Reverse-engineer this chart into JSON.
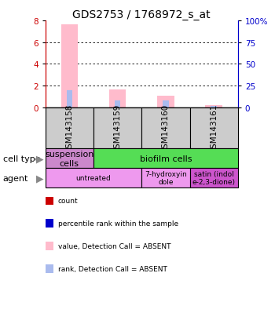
{
  "title": "GDS2753 / 1768972_s_at",
  "samples": [
    "GSM143158",
    "GSM143159",
    "GSM143160",
    "GSM143161"
  ],
  "pink_values": [
    7.6,
    1.65,
    1.05,
    0.18
  ],
  "blue_values": [
    20.0,
    8.0,
    8.0,
    2.0
  ],
  "pink_color": "#ffbbcc",
  "blue_color": "#aabbee",
  "ylim_left": [
    0,
    8
  ],
  "ylim_right": [
    0,
    100
  ],
  "yticks_left": [
    0,
    2,
    4,
    6,
    8
  ],
  "yticks_right": [
    0,
    25,
    50,
    75,
    100
  ],
  "cell_spans": [
    {
      "start": 0,
      "end": 1,
      "label": "suspension\ncells",
      "color": "#cc88cc"
    },
    {
      "start": 1,
      "end": 4,
      "label": "biofilm cells",
      "color": "#55dd55"
    }
  ],
  "agent_spans": [
    {
      "start": 0,
      "end": 2,
      "label": "untreated",
      "color": "#ee99ee"
    },
    {
      "start": 2,
      "end": 3,
      "label": "7-hydroxyin\ndole",
      "color": "#ee99ee"
    },
    {
      "start": 3,
      "end": 4,
      "label": "satin (indol\ne-2,3-dione)",
      "color": "#cc55cc"
    }
  ],
  "sample_bg_color": "#cccccc",
  "legend_items": [
    {
      "color": "#cc0000",
      "label": "count"
    },
    {
      "color": "#0000cc",
      "label": "percentile rank within the sample"
    },
    {
      "color": "#ffbbcc",
      "label": "value, Detection Call = ABSENT"
    },
    {
      "color": "#aabbee",
      "label": "rank, Detection Call = ABSENT"
    }
  ],
  "left_axis_color": "#cc0000",
  "right_axis_color": "#0000cc",
  "title_fontsize": 10,
  "tick_fontsize": 7.5,
  "sample_fontsize": 7.5,
  "cell_fontsize": 8,
  "legend_fontsize": 6.5,
  "arrow_label_fontsize": 8
}
